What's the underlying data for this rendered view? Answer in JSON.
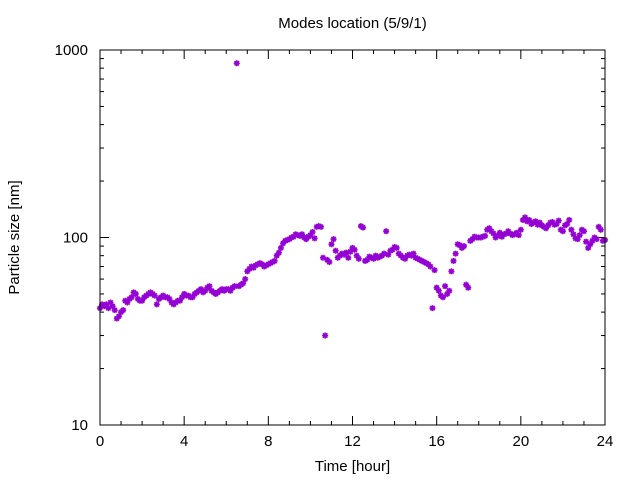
{
  "chart_data": {
    "type": "scatter",
    "title": "Modes location (5/9/1)",
    "xlabel": "Time [hour]",
    "ylabel": "Particle size [nm]",
    "xlim": [
      0,
      24
    ],
    "ylim": [
      10,
      1000
    ],
    "yscale": "log",
    "x_ticks": [
      0,
      4,
      8,
      12,
      16,
      20,
      24
    ],
    "x_tick_labels": [
      "0",
      "4",
      "8",
      "12",
      "16",
      "20",
      "24"
    ],
    "y_ticks": [
      10,
      100,
      1000
    ],
    "y_tick_labels": [
      "10",
      "100",
      "1000"
    ],
    "grid": false,
    "legend": "none",
    "marker_color": "#9400d3",
    "series": [
      {
        "points": [
          [
            0.0,
            42
          ],
          [
            0.1,
            44
          ],
          [
            0.2,
            43
          ],
          [
            0.3,
            44
          ],
          [
            0.4,
            42
          ],
          [
            0.5,
            45
          ],
          [
            0.6,
            43
          ],
          [
            0.7,
            41
          ],
          [
            0.8,
            37
          ],
          [
            0.9,
            38
          ],
          [
            1.0,
            40
          ],
          [
            1.1,
            41
          ],
          [
            1.2,
            46
          ],
          [
            1.3,
            45
          ],
          [
            1.4,
            47
          ],
          [
            1.5,
            48
          ],
          [
            1.6,
            51
          ],
          [
            1.7,
            50
          ],
          [
            1.8,
            47
          ],
          [
            1.9,
            46
          ],
          [
            2.0,
            46
          ],
          [
            2.1,
            48
          ],
          [
            2.2,
            49
          ],
          [
            2.3,
            50
          ],
          [
            2.4,
            51
          ],
          [
            2.5,
            50
          ],
          [
            2.6,
            49
          ],
          [
            2.7,
            44
          ],
          [
            2.8,
            47
          ],
          [
            2.9,
            48
          ],
          [
            3.0,
            49
          ],
          [
            3.1,
            48
          ],
          [
            3.2,
            48
          ],
          [
            3.3,
            47
          ],
          [
            3.4,
            45
          ],
          [
            3.5,
            44
          ],
          [
            3.6,
            45
          ],
          [
            3.7,
            46
          ],
          [
            3.8,
            46
          ],
          [
            3.9,
            48
          ],
          [
            4.0,
            50
          ],
          [
            4.1,
            49
          ],
          [
            4.2,
            49
          ],
          [
            4.3,
            48
          ],
          [
            4.4,
            48
          ],
          [
            4.5,
            50
          ],
          [
            4.6,
            51
          ],
          [
            4.7,
            52
          ],
          [
            4.8,
            53
          ],
          [
            4.9,
            51
          ],
          [
            5.0,
            52
          ],
          [
            5.1,
            54
          ],
          [
            5.2,
            55
          ],
          [
            5.3,
            52
          ],
          [
            5.4,
            51
          ],
          [
            5.5,
            50
          ],
          [
            5.6,
            51
          ],
          [
            5.7,
            52
          ],
          [
            5.8,
            53
          ],
          [
            5.9,
            52
          ],
          [
            6.0,
            53
          ],
          [
            6.1,
            53
          ],
          [
            6.2,
            52
          ],
          [
            6.3,
            54
          ],
          [
            6.4,
            55
          ],
          [
            6.5,
            850
          ],
          [
            6.6,
            55
          ],
          [
            6.7,
            56
          ],
          [
            6.8,
            57
          ],
          [
            6.9,
            60
          ],
          [
            7.0,
            66
          ],
          [
            7.1,
            68
          ],
          [
            7.2,
            70
          ],
          [
            7.3,
            69
          ],
          [
            7.4,
            71
          ],
          [
            7.5,
            72
          ],
          [
            7.6,
            73
          ],
          [
            7.7,
            72
          ],
          [
            7.8,
            70
          ],
          [
            7.9,
            71
          ],
          [
            8.0,
            72
          ],
          [
            8.1,
            73
          ],
          [
            8.2,
            74
          ],
          [
            8.3,
            75
          ],
          [
            8.4,
            80
          ],
          [
            8.5,
            83
          ],
          [
            8.6,
            88
          ],
          [
            8.7,
            93
          ],
          [
            8.8,
            96
          ],
          [
            8.9,
            97
          ],
          [
            9.0,
            98
          ],
          [
            9.1,
            100
          ],
          [
            9.2,
            101
          ],
          [
            9.3,
            104
          ],
          [
            9.4,
            103
          ],
          [
            9.5,
            102
          ],
          [
            9.6,
            104
          ],
          [
            9.7,
            100
          ],
          [
            9.8,
            98
          ],
          [
            9.9,
            101
          ],
          [
            10.0,
            103
          ],
          [
            10.1,
            107
          ],
          [
            10.2,
            99
          ],
          [
            10.3,
            114
          ],
          [
            10.4,
            115
          ],
          [
            10.5,
            114
          ],
          [
            10.6,
            78
          ],
          [
            10.7,
            30
          ],
          [
            10.8,
            76
          ],
          [
            10.9,
            74
          ],
          [
            11.0,
            92
          ],
          [
            11.1,
            98
          ],
          [
            11.2,
            85
          ],
          [
            11.3,
            78
          ],
          [
            11.4,
            80
          ],
          [
            11.5,
            82
          ],
          [
            11.6,
            81
          ],
          [
            11.7,
            83
          ],
          [
            11.8,
            78
          ],
          [
            11.9,
            84
          ],
          [
            12.0,
            88
          ],
          [
            12.1,
            86
          ],
          [
            12.2,
            80
          ],
          [
            12.3,
            77
          ],
          [
            12.4,
            115
          ],
          [
            12.5,
            113
          ],
          [
            12.6,
            75
          ],
          [
            12.7,
            76
          ],
          [
            12.8,
            79
          ],
          [
            12.9,
            78
          ],
          [
            13.0,
            77
          ],
          [
            13.1,
            80
          ],
          [
            13.2,
            78
          ],
          [
            13.3,
            79
          ],
          [
            13.4,
            80
          ],
          [
            13.5,
            82
          ],
          [
            13.6,
            108
          ],
          [
            13.7,
            81
          ],
          [
            13.8,
            85
          ],
          [
            13.9,
            86
          ],
          [
            14.0,
            89
          ],
          [
            14.1,
            88
          ],
          [
            14.2,
            82
          ],
          [
            14.3,
            80
          ],
          [
            14.4,
            78
          ],
          [
            14.5,
            77
          ],
          [
            14.6,
            80
          ],
          [
            14.7,
            81
          ],
          [
            14.8,
            80
          ],
          [
            14.9,
            82
          ],
          [
            15.0,
            78
          ],
          [
            15.1,
            77
          ],
          [
            15.2,
            76
          ],
          [
            15.3,
            75
          ],
          [
            15.4,
            74
          ],
          [
            15.5,
            73
          ],
          [
            15.6,
            72
          ],
          [
            15.7,
            70
          ],
          [
            15.8,
            42
          ],
          [
            15.9,
            67
          ],
          [
            16.0,
            54
          ],
          [
            16.1,
            52
          ],
          [
            16.2,
            49
          ],
          [
            16.3,
            48
          ],
          [
            16.4,
            55
          ],
          [
            16.5,
            50
          ],
          [
            16.6,
            52
          ],
          [
            16.7,
            66
          ],
          [
            16.8,
            75
          ],
          [
            16.9,
            82
          ],
          [
            17.0,
            92
          ],
          [
            17.1,
            91
          ],
          [
            17.2,
            88
          ],
          [
            17.3,
            90
          ],
          [
            17.4,
            56
          ],
          [
            17.5,
            54
          ],
          [
            17.6,
            96
          ],
          [
            17.7,
            98
          ],
          [
            17.8,
            101
          ],
          [
            17.9,
            100
          ],
          [
            18.0,
            100
          ],
          [
            18.1,
            100
          ],
          [
            18.2,
            101
          ],
          [
            18.3,
            102
          ],
          [
            18.4,
            110
          ],
          [
            18.5,
            112
          ],
          [
            18.6,
            108
          ],
          [
            18.7,
            105
          ],
          [
            18.8,
            100
          ],
          [
            18.9,
            102
          ],
          [
            19.0,
            106
          ],
          [
            19.1,
            101
          ],
          [
            19.2,
            104
          ],
          [
            19.3,
            105
          ],
          [
            19.4,
            108
          ],
          [
            19.5,
            105
          ],
          [
            19.6,
            103
          ],
          [
            19.7,
            104
          ],
          [
            19.8,
            106
          ],
          [
            19.9,
            103
          ],
          [
            20.0,
            110
          ],
          [
            20.1,
            124
          ],
          [
            20.2,
            128
          ],
          [
            20.3,
            122
          ],
          [
            20.4,
            124
          ],
          [
            20.5,
            118
          ],
          [
            20.6,
            120
          ],
          [
            20.7,
            122
          ],
          [
            20.8,
            117
          ],
          [
            20.9,
            120
          ],
          [
            21.0,
            116
          ],
          [
            21.1,
            114
          ],
          [
            21.2,
            112
          ],
          [
            21.3,
            116
          ],
          [
            21.4,
            120
          ],
          [
            21.5,
            121
          ],
          [
            21.6,
            117
          ],
          [
            21.7,
            118
          ],
          [
            21.8,
            123
          ],
          [
            21.9,
            110
          ],
          [
            22.0,
            108
          ],
          [
            22.1,
            116
          ],
          [
            22.2,
            118
          ],
          [
            22.3,
            124
          ],
          [
            22.4,
            110
          ],
          [
            22.5,
            104
          ],
          [
            22.6,
            99
          ],
          [
            22.7,
            98
          ],
          [
            22.8,
            103
          ],
          [
            22.9,
            110
          ],
          [
            23.0,
            108
          ],
          [
            23.1,
            95
          ],
          [
            23.2,
            88
          ],
          [
            23.3,
            92
          ],
          [
            23.4,
            96
          ],
          [
            23.5,
            100
          ],
          [
            23.6,
            98
          ],
          [
            23.7,
            114
          ],
          [
            23.8,
            110
          ],
          [
            23.9,
            96
          ],
          [
            24.0,
            97
          ]
        ]
      }
    ]
  }
}
